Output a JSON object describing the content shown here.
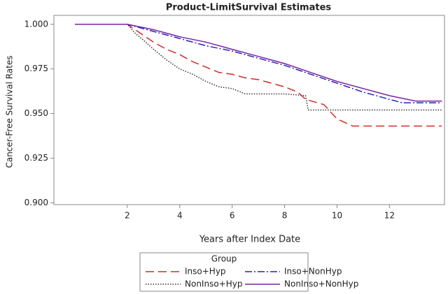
{
  "chart_data": {
    "type": "line",
    "title": "Product-LimitSurvival Estimates",
    "xlabel": "Years after Index Date",
    "ylabel": "Cancer-Free Survival Rates",
    "xlim": [
      -0.8,
      14.1
    ],
    "ylim": [
      0.899,
      1.005
    ],
    "xticks": [
      2,
      4,
      6,
      8,
      10,
      12
    ],
    "yticks": [
      {
        "value": 0.9,
        "label": "0.900"
      },
      {
        "value": 0.925,
        "label": "0.925"
      },
      {
        "value": 0.95,
        "label": "0.950"
      },
      {
        "value": 0.975,
        "label": "0.975"
      },
      {
        "value": 1.0,
        "label": "1.000"
      }
    ],
    "legend_title": "Group",
    "legend": "bottom",
    "series": [
      {
        "name": "Inso+Hyp",
        "color": "#d42a2a",
        "dash": "12,6",
        "x": [
          0,
          2,
          2.5,
          3,
          3.5,
          4,
          4.5,
          5,
          5.5,
          6,
          6.5,
          7,
          7.5,
          8,
          8.5,
          8.8,
          9.5,
          10,
          10.6,
          14
        ],
        "values": [
          1.0,
          1.0,
          0.995,
          0.99,
          0.986,
          0.983,
          0.979,
          0.976,
          0.973,
          0.972,
          0.97,
          0.969,
          0.967,
          0.965,
          0.962,
          0.958,
          0.955,
          0.947,
          0.943,
          0.943
        ]
      },
      {
        "name": "Inso+NonHyp",
        "color": "#2424b8",
        "dash": "10,3,2,3",
        "x": [
          0,
          2,
          3,
          4,
          5,
          6,
          7,
          8,
          9,
          10,
          11,
          12,
          12.5,
          14
        ],
        "values": [
          1.0,
          1.0,
          0.996,
          0.992,
          0.988,
          0.985,
          0.981,
          0.977,
          0.972,
          0.967,
          0.962,
          0.958,
          0.956,
          0.956
        ]
      },
      {
        "name": "NonInso+Hyp",
        "color": "#333333",
        "dash": "1.5,2",
        "x": [
          0,
          2,
          2.3,
          2.7,
          3,
          3.5,
          4,
          4.5,
          5,
          5.5,
          6,
          6.5,
          7,
          8,
          8.8,
          8.9,
          14
        ],
        "values": [
          1.0,
          1.0,
          0.995,
          0.99,
          0.986,
          0.98,
          0.975,
          0.972,
          0.968,
          0.965,
          0.964,
          0.961,
          0.961,
          0.961,
          0.96,
          0.952,
          0.952
        ]
      },
      {
        "name": "NonInso+NonHyp",
        "color": "#7a22a6",
        "dash": "none",
        "x": [
          0,
          2,
          3,
          4,
          5,
          6,
          7,
          8,
          9,
          10,
          11,
          12,
          13,
          14
        ],
        "values": [
          1.0,
          1.0,
          0.997,
          0.993,
          0.99,
          0.986,
          0.982,
          0.978,
          0.973,
          0.968,
          0.964,
          0.96,
          0.957,
          0.957
        ]
      }
    ]
  }
}
